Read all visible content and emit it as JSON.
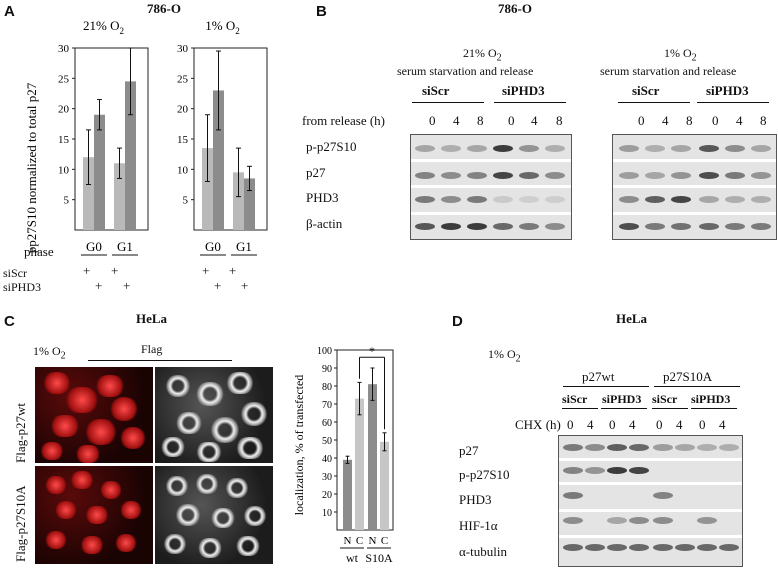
{
  "panelA": {
    "letter": "A",
    "cell_line": "786-O",
    "ylabel": "pp27S10 normalized to total p27",
    "phase_label": "phase",
    "siScr": "siScr",
    "siPHD3": "siPHD3",
    "plus": "+",
    "charts": [
      {
        "title_base": "21% O",
        "title_sub": "2",
        "categories": [
          "G0",
          "G1"
        ],
        "ylim": [
          0,
          30
        ],
        "yticks": [
          5,
          10,
          15,
          20,
          25,
          30
        ],
        "series": [
          {
            "values": [
              12,
              11
            ],
            "err": [
              4.5,
              2.5
            ],
            "color": "#b9b9b9"
          },
          {
            "values": [
              19,
              24.5
            ],
            "err": [
              2.5,
              5.5
            ],
            "color": "#8c8c8c"
          }
        ]
      },
      {
        "title_base": "1% O",
        "title_sub": "2",
        "categories": [
          "G0",
          "G1"
        ],
        "ylim": [
          0,
          30
        ],
        "yticks": [
          5,
          10,
          15,
          20,
          25,
          30
        ],
        "series": [
          {
            "values": [
              13.5,
              9.5
            ],
            "err": [
              5.5,
              4
            ],
            "color": "#b9b9b9"
          },
          {
            "values": [
              23,
              8.5
            ],
            "err": [
              6.5,
              2
            ],
            "color": "#8c8c8c"
          }
        ]
      }
    ]
  },
  "panelB": {
    "letter": "B",
    "cell_line": "786-O",
    "group1_l1_base": "21% O",
    "group1_l1_sub": "2",
    "group2_l1_base": "1% O",
    "group2_l1_sub": "2",
    "group_l2": "serum starvation and release",
    "siScr": "siScr",
    "siPHD3": "siPHD3",
    "time_label": "from release (h)",
    "times": [
      "0",
      "4",
      "8",
      "0",
      "4",
      "8",
      "0",
      "4",
      "8",
      "0",
      "4",
      "8"
    ],
    "rows": [
      "p-p27S10",
      "p27",
      "PHD3",
      "β-actin"
    ]
  },
  "panelC": {
    "letter": "C",
    "cell_line": "HeLa",
    "oxygen_base": "1% O",
    "oxygen_sub": "2",
    "flag": "Flag",
    "row1": "Flag-p27wt",
    "row2": "Flag-p27S10A"
  },
  "chartC": {
    "type": "bar",
    "ylabel": "localization, % of transfected",
    "ylim": [
      0,
      100
    ],
    "yticks": [
      10,
      20,
      30,
      40,
      50,
      60,
      70,
      80,
      90,
      100
    ],
    "groups": [
      "wt",
      "S10A"
    ],
    "bar_labels": [
      "N",
      "C",
      "N",
      "C"
    ],
    "values": [
      39,
      73,
      81,
      49
    ],
    "err": [
      2,
      9,
      9,
      5
    ],
    "colors": [
      "#8c8c8c",
      "#c6c6c6",
      "#8c8c8c",
      "#c6c6c6"
    ],
    "significance": "*"
  },
  "panelD": {
    "letter": "D",
    "cell_line": "HeLa",
    "oxygen_base": "1% O",
    "oxygen_sub": "2",
    "p27wt": "p27wt",
    "p27S10A": "p27S10A",
    "siScr": "siScr",
    "siPHD3": "siPHD3",
    "chx_label": "CHX (h)",
    "times": [
      "0",
      "4",
      "0",
      "4",
      "0",
      "4",
      "0",
      "4"
    ],
    "rows": [
      "p27",
      "p-p27S10",
      "PHD3",
      "HIF-1α",
      "α-tubulin"
    ]
  }
}
